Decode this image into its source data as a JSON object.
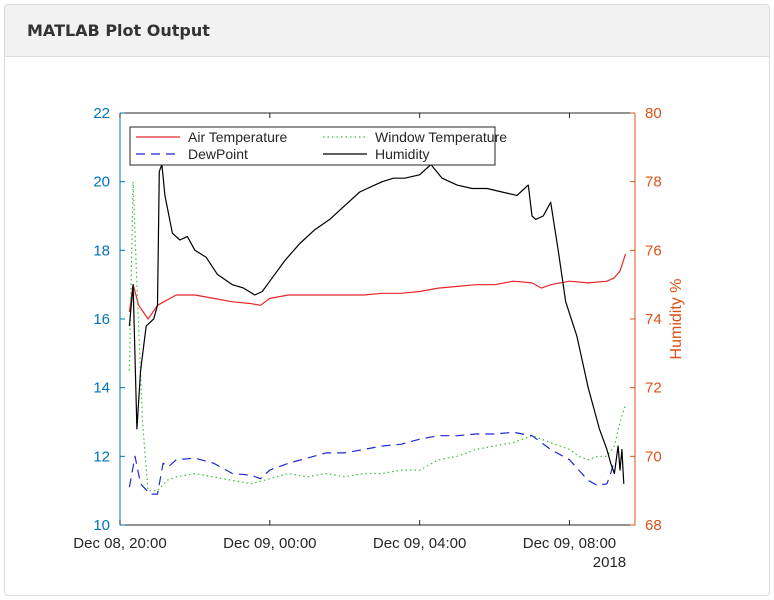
{
  "panel": {
    "title": "MATLAB Plot Output"
  },
  "colors": {
    "left_axis": "#0072bd",
    "right_axis": "#d95319",
    "air_temperature": "#e8262a",
    "window_temperature": "#33c233",
    "dewpoint": "#1f28d6",
    "humidity": "#000000"
  },
  "chart_data": {
    "type": "line",
    "title": "",
    "xlabel": "",
    "ylabel_left": "",
    "ylabel_right": "Humidity %",
    "x_tick_labels": [
      "Dec 08, 20:00",
      "Dec 09, 00:00",
      "Dec 09, 04:00",
      "Dec 09, 08:00"
    ],
    "x_ticks_hours": [
      0,
      4,
      8,
      12
    ],
    "x_range_hours": [
      0,
      13.75
    ],
    "x_year_label": "2018",
    "y_left_range": [
      10,
      22
    ],
    "y_left_ticks": [
      "10",
      "12",
      "14",
      "16",
      "18",
      "20",
      "22"
    ],
    "y_right_range": [
      68,
      80
    ],
    "y_right_ticks": [
      "68",
      "70",
      "72",
      "74",
      "76",
      "78",
      "80"
    ],
    "grid": false,
    "legend_placement": "top-left",
    "series": [
      {
        "name": "Air Temperature",
        "axis": "left",
        "style": "solid",
        "points": [
          [
            0.25,
            16.2
          ],
          [
            0.35,
            17.0
          ],
          [
            0.5,
            16.4
          ],
          [
            0.75,
            16.0
          ],
          [
            1.0,
            16.4
          ],
          [
            1.5,
            16.7
          ],
          [
            2.0,
            16.7
          ],
          [
            2.5,
            16.6
          ],
          [
            3.0,
            16.5
          ],
          [
            3.5,
            16.45
          ],
          [
            3.75,
            16.4
          ],
          [
            4.0,
            16.6
          ],
          [
            4.5,
            16.7
          ],
          [
            5.0,
            16.7
          ],
          [
            5.5,
            16.7
          ],
          [
            6.0,
            16.7
          ],
          [
            6.5,
            16.7
          ],
          [
            7.0,
            16.75
          ],
          [
            7.5,
            16.75
          ],
          [
            8.0,
            16.8
          ],
          [
            8.5,
            16.9
          ],
          [
            9.0,
            16.95
          ],
          [
            9.5,
            17.0
          ],
          [
            10.0,
            17.0
          ],
          [
            10.5,
            17.1
          ],
          [
            11.0,
            17.05
          ],
          [
            11.25,
            16.9
          ],
          [
            11.5,
            17.0
          ],
          [
            12.0,
            17.1
          ],
          [
            12.5,
            17.05
          ],
          [
            13.0,
            17.1
          ],
          [
            13.2,
            17.2
          ],
          [
            13.35,
            17.4
          ],
          [
            13.5,
            17.9
          ]
        ]
      },
      {
        "name": "Window Temperature",
        "axis": "left",
        "style": "dotted",
        "points": [
          [
            0.25,
            14.5
          ],
          [
            0.35,
            20.0
          ],
          [
            0.45,
            17.0
          ],
          [
            0.6,
            13.0
          ],
          [
            0.75,
            11.0
          ],
          [
            1.0,
            11.0
          ],
          [
            1.25,
            11.3
          ],
          [
            1.5,
            11.4
          ],
          [
            2.0,
            11.5
          ],
          [
            2.5,
            11.4
          ],
          [
            3.0,
            11.3
          ],
          [
            3.5,
            11.2
          ],
          [
            4.0,
            11.35
          ],
          [
            4.5,
            11.5
          ],
          [
            5.0,
            11.4
          ],
          [
            5.5,
            11.5
          ],
          [
            6.0,
            11.4
          ],
          [
            6.5,
            11.5
          ],
          [
            7.0,
            11.5
          ],
          [
            7.5,
            11.6
          ],
          [
            8.0,
            11.6
          ],
          [
            8.5,
            11.9
          ],
          [
            9.0,
            12.0
          ],
          [
            9.5,
            12.2
          ],
          [
            10.0,
            12.3
          ],
          [
            10.5,
            12.4
          ],
          [
            11.0,
            12.6
          ],
          [
            11.25,
            12.5
          ],
          [
            11.5,
            12.4
          ],
          [
            12.0,
            12.2
          ],
          [
            12.25,
            12.0
          ],
          [
            12.5,
            11.9
          ],
          [
            12.75,
            12.0
          ],
          [
            13.0,
            12.0
          ],
          [
            13.2,
            12.3
          ],
          [
            13.35,
            13.0
          ],
          [
            13.5,
            13.5
          ]
        ]
      },
      {
        "name": "DewPoint",
        "axis": "left",
        "style": "dashed",
        "points": [
          [
            0.25,
            11.1
          ],
          [
            0.4,
            12.0
          ],
          [
            0.55,
            11.2
          ],
          [
            0.8,
            10.9
          ],
          [
            1.0,
            10.9
          ],
          [
            1.15,
            11.8
          ],
          [
            1.3,
            11.7
          ],
          [
            1.5,
            11.9
          ],
          [
            2.0,
            11.95
          ],
          [
            2.5,
            11.8
          ],
          [
            3.0,
            11.5
          ],
          [
            3.5,
            11.45
          ],
          [
            3.75,
            11.35
          ],
          [
            4.0,
            11.6
          ],
          [
            4.5,
            11.8
          ],
          [
            5.0,
            11.95
          ],
          [
            5.5,
            12.1
          ],
          [
            6.0,
            12.1
          ],
          [
            6.5,
            12.2
          ],
          [
            7.0,
            12.3
          ],
          [
            7.5,
            12.35
          ],
          [
            8.0,
            12.5
          ],
          [
            8.5,
            12.6
          ],
          [
            9.0,
            12.6
          ],
          [
            9.5,
            12.65
          ],
          [
            10.0,
            12.65
          ],
          [
            10.5,
            12.7
          ],
          [
            11.0,
            12.6
          ],
          [
            11.25,
            12.4
          ],
          [
            11.5,
            12.2
          ],
          [
            12.0,
            11.9
          ],
          [
            12.25,
            11.6
          ],
          [
            12.5,
            11.3
          ],
          [
            12.75,
            11.15
          ],
          [
            13.0,
            11.2
          ],
          [
            13.1,
            11.5
          ],
          [
            13.2,
            11.9
          ]
        ]
      },
      {
        "name": "Humidity",
        "axis": "right",
        "style": "solid",
        "points": [
          [
            0.25,
            73.8
          ],
          [
            0.35,
            75.0
          ],
          [
            0.45,
            70.8
          ],
          [
            0.55,
            72.5
          ],
          [
            0.7,
            73.8
          ],
          [
            0.9,
            74.0
          ],
          [
            1.0,
            74.4
          ],
          [
            1.05,
            78.3
          ],
          [
            1.12,
            78.5
          ],
          [
            1.2,
            77.6
          ],
          [
            1.4,
            76.5
          ],
          [
            1.6,
            76.3
          ],
          [
            1.8,
            76.4
          ],
          [
            2.0,
            76.0
          ],
          [
            2.3,
            75.8
          ],
          [
            2.6,
            75.3
          ],
          [
            3.0,
            75.0
          ],
          [
            3.3,
            74.9
          ],
          [
            3.6,
            74.7
          ],
          [
            3.8,
            74.8
          ],
          [
            4.0,
            75.1
          ],
          [
            4.4,
            75.7
          ],
          [
            4.8,
            76.2
          ],
          [
            5.2,
            76.6
          ],
          [
            5.6,
            76.9
          ],
          [
            6.0,
            77.3
          ],
          [
            6.4,
            77.7
          ],
          [
            6.8,
            77.9
          ],
          [
            7.0,
            78.0
          ],
          [
            7.3,
            78.1
          ],
          [
            7.6,
            78.1
          ],
          [
            8.0,
            78.2
          ],
          [
            8.3,
            78.5
          ],
          [
            8.6,
            78.1
          ],
          [
            9.0,
            77.9
          ],
          [
            9.4,
            77.8
          ],
          [
            9.8,
            77.8
          ],
          [
            10.2,
            77.7
          ],
          [
            10.6,
            77.6
          ],
          [
            10.8,
            77.8
          ],
          [
            10.9,
            77.9
          ],
          [
            11.0,
            77.0
          ],
          [
            11.1,
            76.9
          ],
          [
            11.3,
            77.0
          ],
          [
            11.5,
            77.4
          ],
          [
            11.7,
            76.0
          ],
          [
            11.9,
            74.5
          ],
          [
            12.2,
            73.5
          ],
          [
            12.5,
            72.0
          ],
          [
            12.8,
            70.8
          ],
          [
            13.0,
            70.2
          ],
          [
            13.1,
            69.8
          ],
          [
            13.2,
            69.5
          ],
          [
            13.3,
            70.3
          ],
          [
            13.35,
            69.6
          ],
          [
            13.4,
            70.2
          ],
          [
            13.45,
            69.2
          ]
        ]
      }
    ]
  }
}
